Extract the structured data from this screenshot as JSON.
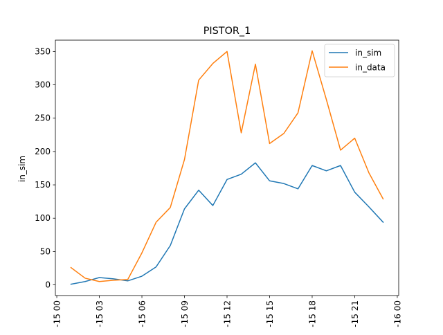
{
  "chart_data": {
    "type": "line",
    "title": "PISTOR_1",
    "ylabel": "in_sim",
    "xlabel": "",
    "x": [
      1,
      2,
      3,
      4,
      5,
      6,
      7,
      8,
      9,
      10,
      11,
      12,
      13,
      14,
      15,
      16,
      17,
      18,
      19,
      20,
      21,
      22,
      23
    ],
    "xlim": [
      -0.1,
      24.1
    ],
    "ylim": [
      -16,
      367
    ],
    "xticks": [
      {
        "value": 0,
        "label": "-15 00"
      },
      {
        "value": 3,
        "label": "-15 03"
      },
      {
        "value": 6,
        "label": "-15 06"
      },
      {
        "value": 9,
        "label": "-15 09"
      },
      {
        "value": 12,
        "label": "-15 12"
      },
      {
        "value": 15,
        "label": "-15 15"
      },
      {
        "value": 18,
        "label": "-15 18"
      },
      {
        "value": 21,
        "label": "-15 21"
      },
      {
        "value": 24,
        "label": "-16 00"
      }
    ],
    "yticks": [
      0,
      50,
      100,
      150,
      200,
      250,
      300,
      350
    ],
    "grid": false,
    "legend_position": "top-right",
    "series": [
      {
        "name": "in_sim",
        "color": "#1f77b4",
        "values": [
          1,
          5,
          11,
          9,
          6,
          13,
          27,
          59,
          114,
          142,
          119,
          158,
          166,
          183,
          156,
          152,
          144,
          179,
          171,
          179,
          139,
          117,
          94
        ]
      },
      {
        "name": "in_data",
        "color": "#ff7f0e",
        "values": [
          26,
          10,
          5,
          7,
          8,
          48,
          94,
          116,
          188,
          307,
          332,
          350,
          228,
          331,
          212,
          227,
          258,
          351,
          278,
          202,
          220,
          168,
          129
        ]
      }
    ]
  }
}
